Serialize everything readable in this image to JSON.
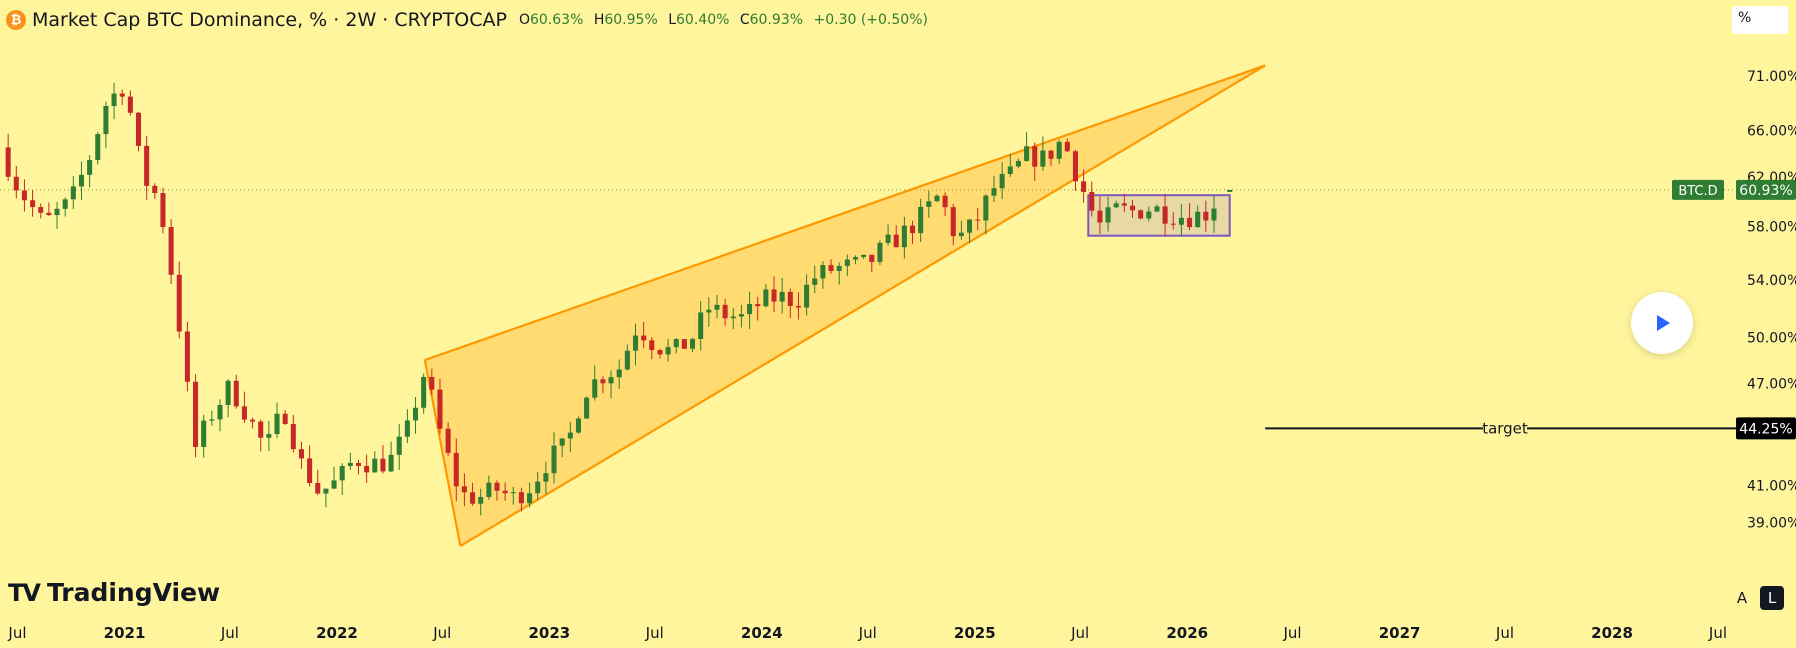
{
  "header": {
    "title": "Market Cap BTC Dominance, % · 2W · CRYPTOCAP",
    "open_label": "O",
    "open": "60.63%",
    "high_label": "H",
    "high": "60.95%",
    "low_label": "L",
    "low": "60.40%",
    "close_label": "C",
    "close": "60.93%",
    "change": "+0.30 (+0.50%)"
  },
  "unit_box": {
    "label": "%"
  },
  "branding": {
    "name": "TradingView"
  },
  "scale_buttons": {
    "auto": "A",
    "log": "L"
  },
  "colors": {
    "background": "#fff59d",
    "up": "#2e7d32",
    "down": "#c62828",
    "wedge": "#ff9800",
    "range_box": "#7e57c2"
  },
  "chart_data": {
    "type": "candlestick",
    "title": "Market Cap BTC Dominance, % · 2W · CRYPTOCAP",
    "y_scale": "log",
    "ylim": [
      36.5,
      74.0
    ],
    "xlim": [
      "2020-06-01",
      "2028-08-01"
    ],
    "y_ticks": [
      "71.00%",
      "66.00%",
      "62.00%",
      "58.00%",
      "54.00%",
      "50.00%",
      "47.00%",
      "41.00%",
      "39.00%"
    ],
    "x_ticks": [
      {
        "label": "Jul",
        "date": "2020-07-01"
      },
      {
        "label": "2021",
        "date": "2021-01-01"
      },
      {
        "label": "Jul",
        "date": "2021-07-01"
      },
      {
        "label": "2022",
        "date": "2022-01-01"
      },
      {
        "label": "Jul",
        "date": "2022-07-01"
      },
      {
        "label": "2023",
        "date": "2023-01-01"
      },
      {
        "label": "Jul",
        "date": "2023-07-01"
      },
      {
        "label": "2024",
        "date": "2024-01-01"
      },
      {
        "label": "Jul",
        "date": "2024-07-01"
      },
      {
        "label": "2025",
        "date": "2025-01-01"
      },
      {
        "label": "Jul",
        "date": "2025-07-01"
      },
      {
        "label": "2026",
        "date": "2026-01-01"
      },
      {
        "label": "Jul",
        "date": "2026-07-01"
      },
      {
        "label": "2027",
        "date": "2027-01-01"
      },
      {
        "label": "Jul",
        "date": "2027-07-01"
      },
      {
        "label": "2028",
        "date": "2028-01-01"
      },
      {
        "label": "Jul",
        "date": "2028-07-01"
      }
    ],
    "path": [
      [
        "2020-06-01",
        64.5
      ],
      [
        "2020-07-01",
        61.2
      ],
      [
        "2020-08-15",
        58.2
      ],
      [
        "2020-10-01",
        60.0
      ],
      [
        "2020-11-01",
        63.5
      ],
      [
        "2020-12-01",
        68.5
      ],
      [
        "2021-01-01",
        70.2
      ],
      [
        "2021-02-01",
        62.0
      ],
      [
        "2021-03-01",
        60.2
      ],
      [
        "2021-04-01",
        52.0
      ],
      [
        "2021-05-01",
        43.0
      ],
      [
        "2021-06-01",
        45.2
      ],
      [
        "2021-07-01",
        46.8
      ],
      [
        "2021-08-01",
        45.0
      ],
      [
        "2021-09-01",
        43.0
      ],
      [
        "2021-10-01",
        45.5
      ],
      [
        "2021-11-01",
        42.2
      ],
      [
        "2021-12-01",
        40.6
      ],
      [
        "2022-01-01",
        41.2
      ],
      [
        "2022-02-01",
        42.5
      ],
      [
        "2022-03-01",
        42.2
      ],
      [
        "2022-04-01",
        42.3
      ],
      [
        "2022-05-01",
        44.0
      ],
      [
        "2022-06-01",
        47.8
      ],
      [
        "2022-07-01",
        43.5
      ],
      [
        "2022-08-01",
        40.5
      ],
      [
        "2022-09-01",
        40.3
      ],
      [
        "2022-10-01",
        40.8
      ],
      [
        "2022-11-01",
        40.3
      ],
      [
        "2022-12-01",
        41.0
      ],
      [
        "2023-01-01",
        42.5
      ],
      [
        "2023-02-01",
        43.3
      ],
      [
        "2023-03-01",
        46.5
      ],
      [
        "2023-04-01",
        47.5
      ],
      [
        "2023-05-01",
        48.0
      ],
      [
        "2023-06-01",
        50.8
      ],
      [
        "2023-07-01",
        49.5
      ],
      [
        "2023-08-01",
        49.0
      ],
      [
        "2023-09-01",
        49.8
      ],
      [
        "2023-10-01",
        52.0
      ],
      [
        "2023-11-01",
        51.5
      ],
      [
        "2023-12-01",
        51.3
      ],
      [
        "2024-01-01",
        52.5
      ],
      [
        "2024-02-01",
        52.8
      ],
      [
        "2024-03-01",
        52.5
      ],
      [
        "2024-04-01",
        54.2
      ],
      [
        "2024-05-01",
        54.8
      ],
      [
        "2024-06-01",
        55.0
      ],
      [
        "2024-07-01",
        55.2
      ],
      [
        "2024-08-01",
        56.5
      ],
      [
        "2024-09-01",
        57.5
      ],
      [
        "2024-10-01",
        58.8
      ],
      [
        "2024-11-01",
        60.5
      ],
      [
        "2024-12-01",
        57.0
      ],
      [
        "2025-01-01",
        58.2
      ],
      [
        "2025-02-01",
        61.0
      ],
      [
        "2025-03-01",
        62.0
      ],
      [
        "2025-04-01",
        63.8
      ],
      [
        "2025-05-01",
        63.5
      ],
      [
        "2025-06-01",
        65.2
      ],
      [
        "2025-07-01",
        61.5
      ],
      [
        "2025-08-01",
        58.0
      ],
      [
        "2025-09-01",
        59.3
      ],
      [
        "2025-10-01",
        59.2
      ],
      [
        "2025-11-01",
        59.5
      ],
      [
        "2025-12-01",
        59.0
      ],
      [
        "2026-01-01",
        58.8
      ],
      [
        "2026-02-01",
        59.0
      ],
      [
        "2026-03-01",
        60.63
      ]
    ],
    "last_price": {
      "label": "BTC.D",
      "value": "60.93%",
      "y": 60.93
    },
    "wedge": {
      "upper": [
        [
          "2022-06-01",
          48.5
        ],
        [
          "2026-05-15",
          72.0
        ]
      ],
      "lower": [
        [
          "2022-08-01",
          37.8
        ],
        [
          "2025-07-01",
          61.0
        ]
      ],
      "apex": [
        "2026-05-15",
        72.0
      ]
    },
    "consolidation_box": {
      "x": [
        "2025-07-15",
        "2026-03-15"
      ],
      "y": [
        57.3,
        60.5
      ]
    },
    "target": {
      "label": "target",
      "value": "44.25%",
      "y": 44.25,
      "x_start": "2026-05-15"
    }
  }
}
